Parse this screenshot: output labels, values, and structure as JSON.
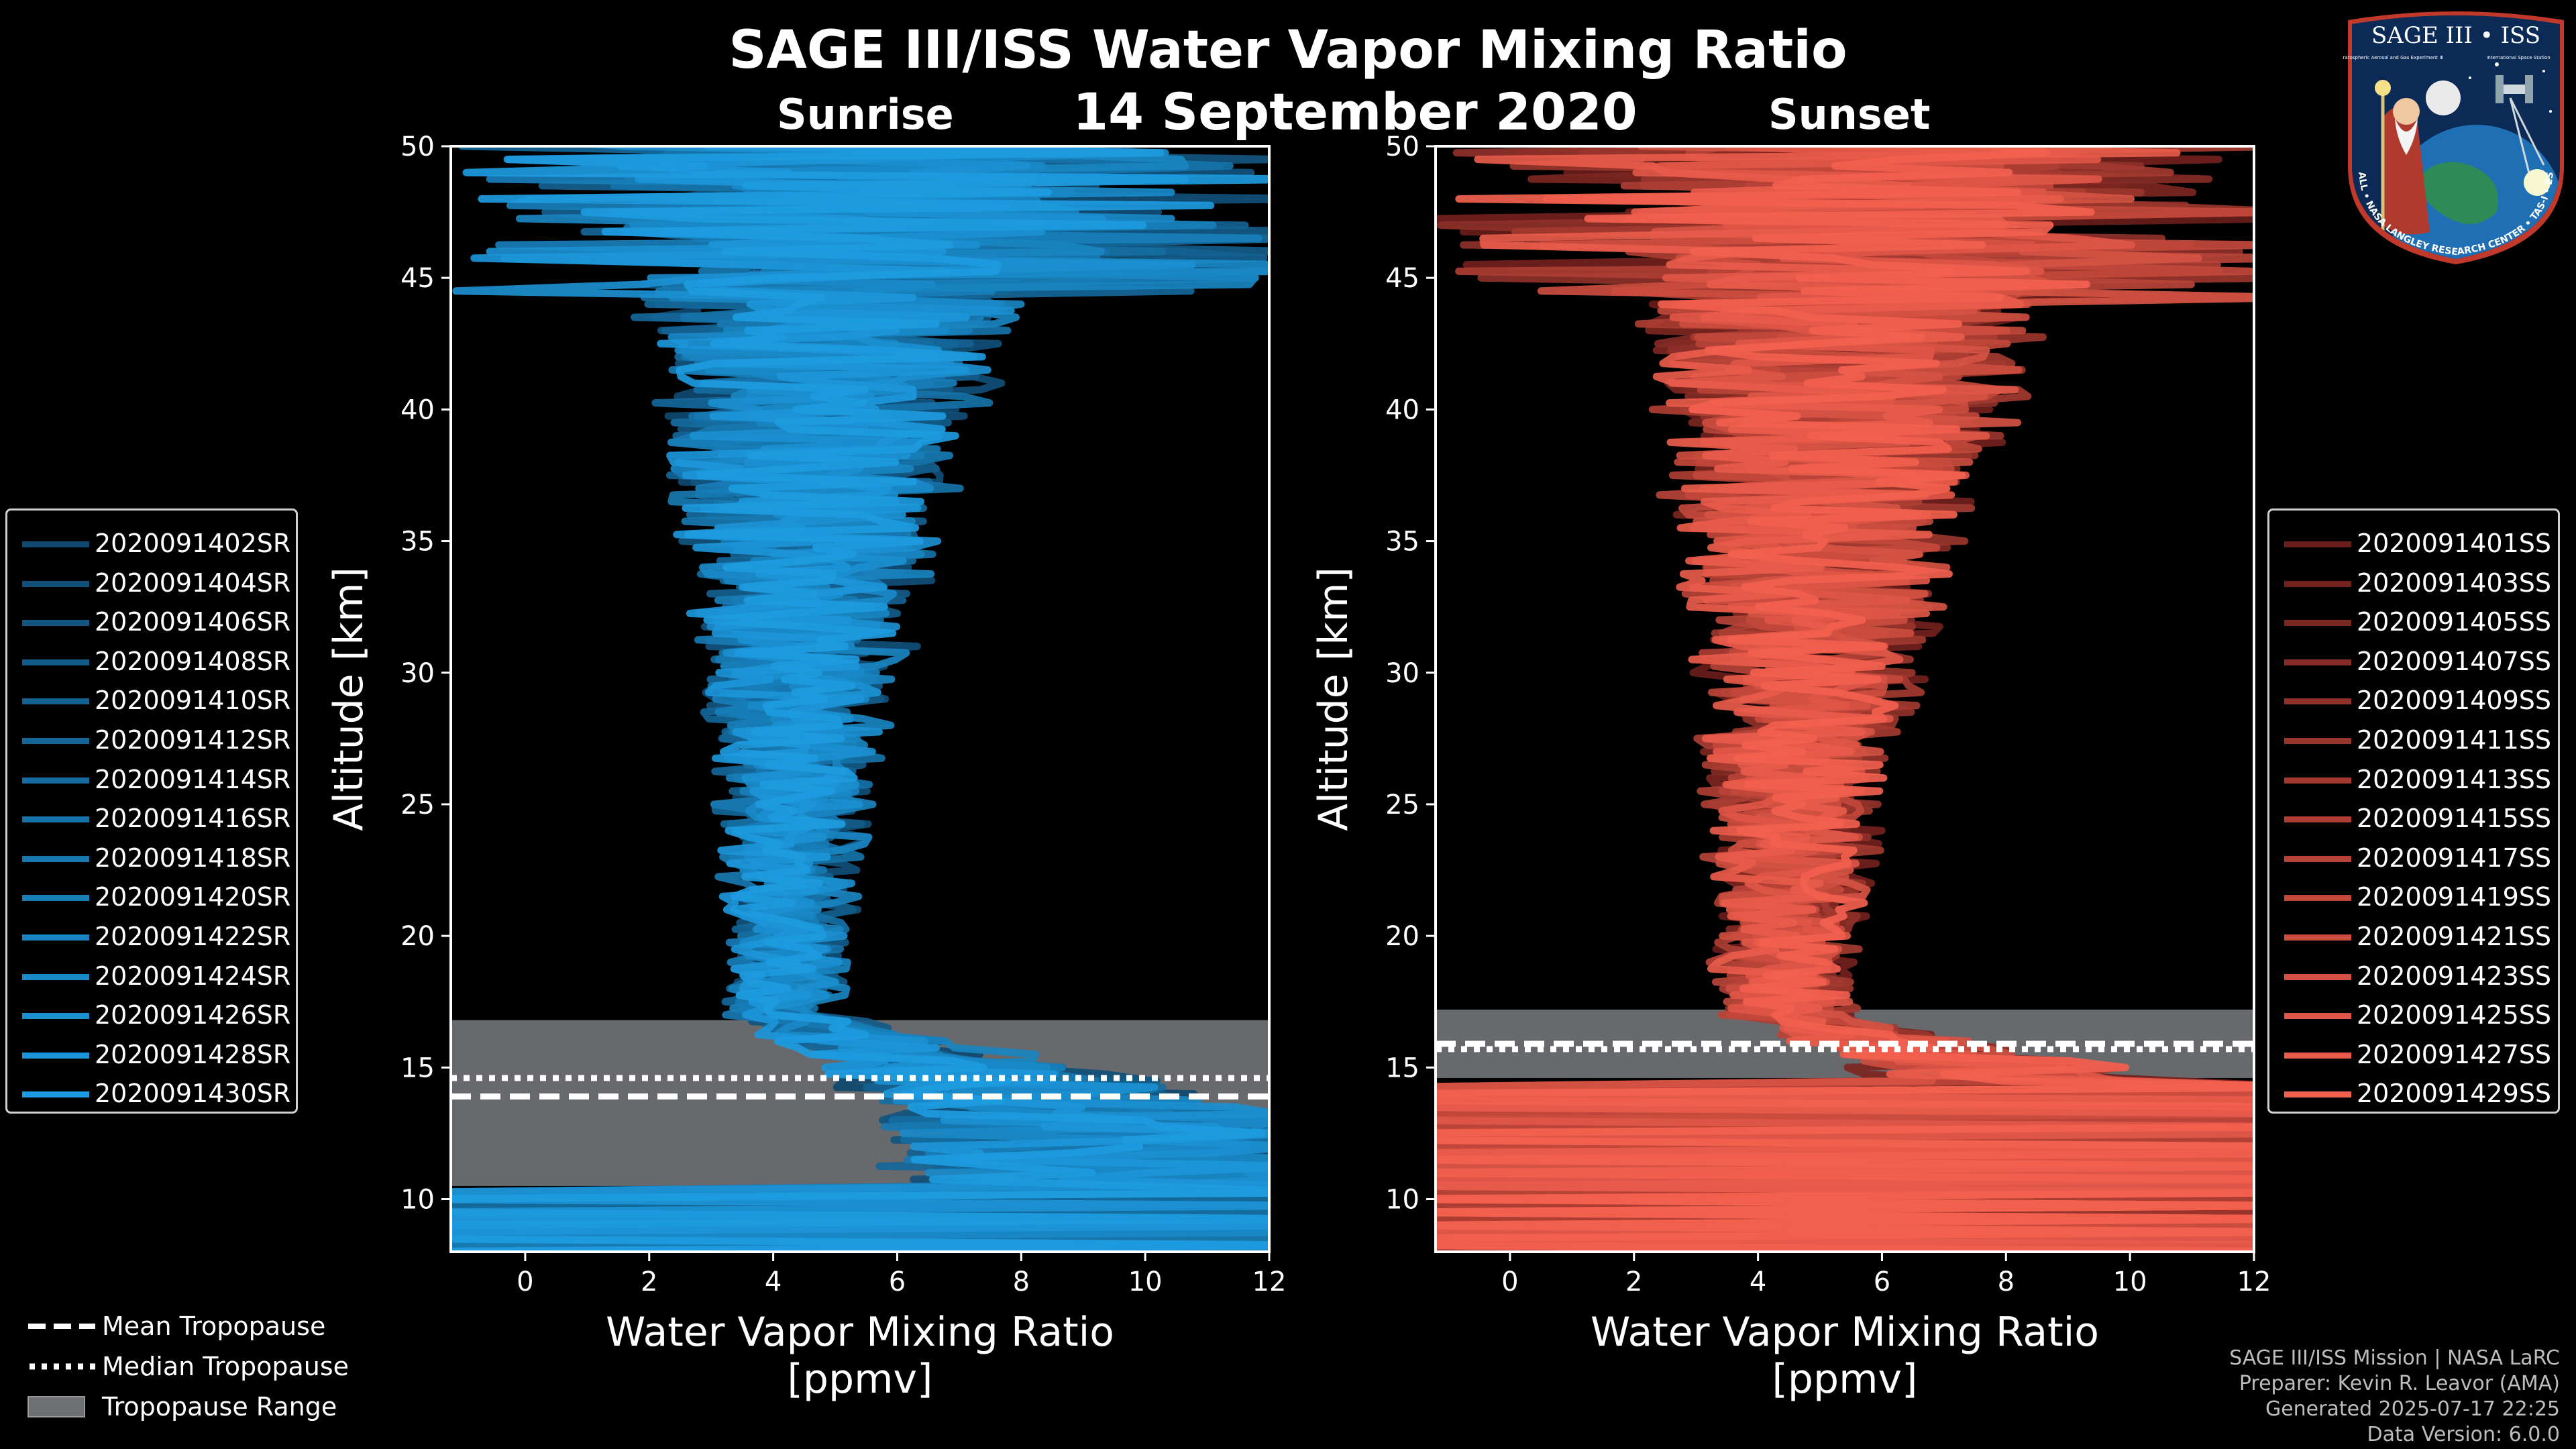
{
  "header": {
    "title": "SAGE III/ISS Water Vapor Mixing Ratio",
    "date": "14 September 2020",
    "sunrise_label": "Sunrise",
    "sunset_label": "Sunset"
  },
  "logo": {
    "top_text": "SAGE III • ISS",
    "sub_text_left": "Stratospheric Aerosol and Gas Experiment III",
    "sub_text_right": "International Space Station",
    "ring_text": "BALL • NASA LANGLEY RESEARCH CENTER • TAS-I • ESA"
  },
  "colors": {
    "background": "#000000",
    "sunrise_base": "#1f8fd6",
    "sunset_base": "#e8584a",
    "tropopause_fill": "#6e6f72",
    "axis": "#ffffff"
  },
  "chart_data": [
    {
      "type": "line",
      "panel": "sunrise",
      "xlabel": "Water Vapor Mixing Ratio\n[ppmv]",
      "ylabel": "Altitude [km]",
      "xlim": [
        -1.2,
        12
      ],
      "ylim": [
        8,
        50
      ],
      "xticks": [
        0,
        2,
        4,
        6,
        8,
        10,
        12
      ],
      "yticks": [
        10,
        15,
        20,
        25,
        30,
        35,
        40,
        45,
        50
      ],
      "tropopause": {
        "mean_km": 13.9,
        "median_km": 14.6,
        "range_km": [
          10.5,
          16.8
        ]
      },
      "profile_shape": {
        "center_at_50km": 5.2,
        "center_at_17km": 4.2,
        "center_at_13km": 9.5,
        "spread_at_50km": 3.8,
        "spread_at_25km": 0.7
      },
      "series": [
        {
          "name": "2020091402SR"
        },
        {
          "name": "2020091404SR"
        },
        {
          "name": "2020091406SR"
        },
        {
          "name": "2020091408SR"
        },
        {
          "name": "2020091410SR"
        },
        {
          "name": "2020091412SR"
        },
        {
          "name": "2020091414SR"
        },
        {
          "name": "2020091416SR"
        },
        {
          "name": "2020091418SR"
        },
        {
          "name": "2020091420SR"
        },
        {
          "name": "2020091422SR"
        },
        {
          "name": "2020091424SR"
        },
        {
          "name": "2020091426SR"
        },
        {
          "name": "2020091428SR"
        },
        {
          "name": "2020091430SR"
        }
      ]
    },
    {
      "type": "line",
      "panel": "sunset",
      "xlabel": "Water Vapor Mixing Ratio\n[ppmv]",
      "ylabel": "Altitude [km]",
      "xlim": [
        -1.2,
        12
      ],
      "ylim": [
        8,
        50
      ],
      "xticks": [
        0,
        2,
        4,
        6,
        8,
        10,
        12
      ],
      "yticks": [
        10,
        15,
        20,
        25,
        30,
        35,
        40,
        45,
        50
      ],
      "tropopause": {
        "mean_km": 15.9,
        "median_km": 15.7,
        "range_km": [
          14.6,
          17.2
        ]
      },
      "profile_shape": {
        "center_at_50km": 5.8,
        "center_at_17km": 4.4,
        "center_at_13km": 11.0,
        "spread_at_50km": 4.2,
        "spread_at_25km": 0.9
      },
      "series": [
        {
          "name": "2020091401SS"
        },
        {
          "name": "2020091403SS"
        },
        {
          "name": "2020091405SS"
        },
        {
          "name": "2020091407SS"
        },
        {
          "name": "2020091409SS"
        },
        {
          "name": "2020091411SS"
        },
        {
          "name": "2020091413SS"
        },
        {
          "name": "2020091415SS"
        },
        {
          "name": "2020091417SS"
        },
        {
          "name": "2020091419SS"
        },
        {
          "name": "2020091421SS"
        },
        {
          "name": "2020091423SS"
        },
        {
          "name": "2020091425SS"
        },
        {
          "name": "2020091427SS"
        },
        {
          "name": "2020091429SS"
        }
      ]
    }
  ],
  "tropopause_legend": {
    "mean": "Mean Tropopause",
    "median": "Median Tropopause",
    "range": "Tropopause Range"
  },
  "footer": {
    "line1": "SAGE III/ISS Mission | NASA LaRC",
    "line2": "Preparer: Kevin R. Leavor (AMA)",
    "line3": "Generated 2025-07-17 22:25",
    "line4": "Data Version: 6.0.0"
  }
}
